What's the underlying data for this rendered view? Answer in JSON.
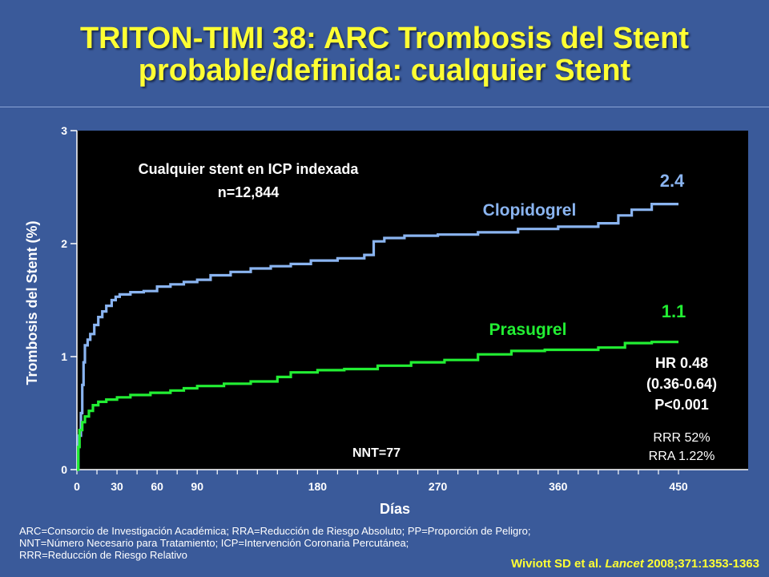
{
  "title_line1": "TRITON-TIMI 38: ARC Trombosis del Stent",
  "title_line2": "probable/definida: cualquier Stent",
  "chart_data": {
    "type": "line",
    "xlabel": "Días",
    "ylabel": "Trombosis del Stent (%)",
    "xlim": [
      0,
      450
    ],
    "ylim": [
      0,
      3
    ],
    "x_ticks": [
      0,
      30,
      60,
      90,
      180,
      270,
      360,
      450
    ],
    "y_ticks": [
      0,
      1,
      2,
      3
    ],
    "grid": false,
    "series": [
      {
        "name": "Clopidogrel",
        "color": "#8ab4f0",
        "end_label": "2.4",
        "points": [
          [
            0,
            0
          ],
          [
            1,
            0.3
          ],
          [
            3,
            0.5
          ],
          [
            4,
            0.75
          ],
          [
            5,
            0.95
          ],
          [
            6,
            1.1
          ],
          [
            8,
            1.15
          ],
          [
            10,
            1.2
          ],
          [
            13,
            1.28
          ],
          [
            16,
            1.35
          ],
          [
            19,
            1.4
          ],
          [
            22,
            1.45
          ],
          [
            26,
            1.5
          ],
          [
            29,
            1.53
          ],
          [
            32,
            1.55
          ],
          [
            40,
            1.57
          ],
          [
            50,
            1.58
          ],
          [
            60,
            1.62
          ],
          [
            70,
            1.64
          ],
          [
            80,
            1.66
          ],
          [
            90,
            1.68
          ],
          [
            100,
            1.72
          ],
          [
            115,
            1.75
          ],
          [
            130,
            1.78
          ],
          [
            145,
            1.8
          ],
          [
            160,
            1.82
          ],
          [
            175,
            1.85
          ],
          [
            195,
            1.87
          ],
          [
            215,
            1.9
          ],
          [
            222,
            2.02
          ],
          [
            230,
            2.05
          ],
          [
            245,
            2.07
          ],
          [
            270,
            2.08
          ],
          [
            300,
            2.1
          ],
          [
            330,
            2.13
          ],
          [
            360,
            2.15
          ],
          [
            390,
            2.18
          ],
          [
            405,
            2.25
          ],
          [
            415,
            2.3
          ],
          [
            430,
            2.35
          ],
          [
            450,
            2.35
          ]
        ]
      },
      {
        "name": "Prasugrel",
        "color": "#22ee33",
        "end_label": "1.1",
        "points": [
          [
            0,
            0
          ],
          [
            1,
            0.2
          ],
          [
            2,
            0.35
          ],
          [
            4,
            0.42
          ],
          [
            6,
            0.47
          ],
          [
            9,
            0.52
          ],
          [
            12,
            0.57
          ],
          [
            16,
            0.6
          ],
          [
            22,
            0.62
          ],
          [
            30,
            0.64
          ],
          [
            40,
            0.66
          ],
          [
            55,
            0.68
          ],
          [
            70,
            0.7
          ],
          [
            80,
            0.72
          ],
          [
            90,
            0.74
          ],
          [
            110,
            0.76
          ],
          [
            130,
            0.78
          ],
          [
            150,
            0.82
          ],
          [
            160,
            0.86
          ],
          [
            180,
            0.88
          ],
          [
            200,
            0.89
          ],
          [
            225,
            0.92
          ],
          [
            250,
            0.95
          ],
          [
            275,
            0.97
          ],
          [
            300,
            1.02
          ],
          [
            325,
            1.05
          ],
          [
            350,
            1.06
          ],
          [
            390,
            1.08
          ],
          [
            410,
            1.12
          ],
          [
            430,
            1.13
          ],
          [
            450,
            1.13
          ]
        ]
      }
    ],
    "annotations": {
      "box_line1": "Cualquier stent en ICP indexada",
      "box_line2": "n=12,844",
      "hr_line1": "HR 0.48",
      "hr_line2": "(0.36-0.64)",
      "hr_line3": "P<0.001",
      "rrr": "RRR 52%",
      "rra": "RRA 1.22%",
      "nnt": "NNT=77"
    }
  },
  "footnote_line1": "ARC=Consorcio de Investigación Académica; RRA=Reducción de Riesgo Absoluto; PP=Proporción de Peligro;",
  "footnote_line2": "NNT=Número Necesario para Tratamiento; ICP=Intervención Coronaria Percutánea;",
  "footnote_line3": "RRR=Reducción de Riesgo Relativo",
  "citation_authors": "Wiviott SD et al.",
  "citation_journal": "Lancet",
  "citation_ref": "2008;371:1353-1363"
}
